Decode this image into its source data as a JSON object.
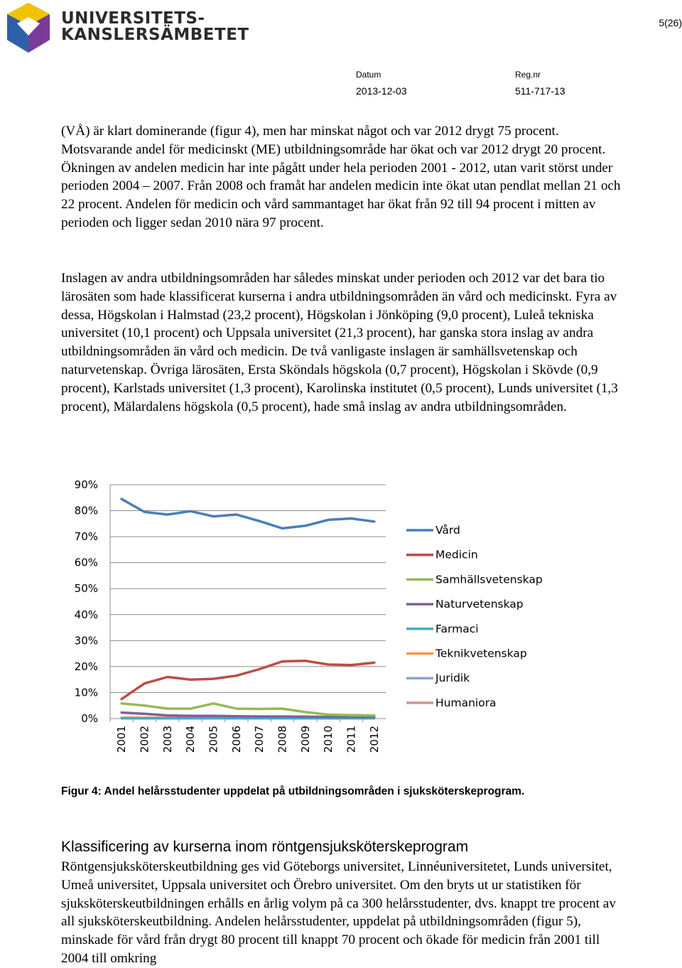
{
  "header": {
    "org_line1": "UNIVERSITETS-",
    "org_line2": "KANSLERSÄMBETET",
    "page_number": "5(26)",
    "date_label": "Datum",
    "date_value": "2013-12-03",
    "regnr_label": "Reg.nr",
    "regnr_value": "511-717-13",
    "logo_icon": "cube-logo-icon",
    "colors": {
      "logo_purple": "#6b2f8f",
      "logo_blue": "#2f5fa8",
      "logo_yellow": "#f2c200",
      "logo_white": "#ffffff"
    }
  },
  "paragraphs": [
    "(VÅ) är klart dominerande (figur 4), men har minskat något och var 2012 drygt 75 procent. Motsvarande andel för medicinskt (ME) utbildningsområde har ökat och var 2012 drygt 20 procent. Ökningen av andelen medicin har inte pågått under hela perioden 2001 - 2012, utan varit störst under perioden 2004 – 2007. Från 2008 och framåt har andelen medicin inte ökat utan pendlat mellan 21 och 22 procent. Andelen för medicin och vård sammantaget har ökat från 92 till 94 procent i mitten av perioden och ligger sedan 2010 nära 97 procent.",
    "Inslagen av andra utbildningsområden har således minskat under perioden och 2012 var det bara tio lärosäten som hade klassificerat kurserna i andra utbildningsområden än vård och medicinskt. Fyra av dessa, Högskolan i Halmstad (23,2 procent), Högskolan i Jönköping (9,0 procent), Luleå tekniska universitet (10,1 procent) och Uppsala universitet (21,3 procent), har ganska stora inslag av andra utbildningsområden än vård och medicin. De två vanligaste inslagen är samhällsvetenskap och naturvetenskap. Övriga lärosäten, Ersta Sköndals högskola (0,7 procent), Högskolan i Skövde (0,9 procent), Karlstads universitet (1,3 procent), Karolinska institutet (0,5 procent), Lunds universitet (1,3 procent), Mälardalens högskola (0,5 procent), hade små inslag av andra utbildningsområden.",
    "Röntgensjuksköterskeutbildning ges vid Göteborgs universitet, Linnéuniversitetet, Lunds universitet, Umeå universitet, Uppsala universitet och Örebro universitet. Om den bryts ut ur statistiken för sjuksköterskeutbildningen erhålls en årlig volym på ca 300 helårsstudenter, dvs. knappt tre procent av all sjuksköterskeutbildning. Andelen helårsstudenter, uppdelat på utbildningsområden (figur 5), minskade för vård från drygt 80 procent till knappt 70 procent och ökade för medicin från 2001 till 2004 till omkring"
  ],
  "figure_caption": "Figur 4: Andel helårsstudenter uppdelat på utbildningsområden i sjuksköterskeprogram.",
  "section_heading": "Klassificering av kurserna inom röntgensjuksköterskeprogram",
  "chart_data": {
    "type": "line",
    "title": "",
    "xlabel": "",
    "ylabel": "",
    "x": [
      "2001",
      "2002",
      "2003",
      "2004",
      "2005",
      "2006",
      "2007",
      "2008",
      "2009",
      "2010",
      "2011",
      "2012"
    ],
    "ylim": [
      0,
      90
    ],
    "yticks": [
      "0%",
      "10%",
      "20%",
      "30%",
      "40%",
      "50%",
      "60%",
      "70%",
      "80%",
      "90%"
    ],
    "grid": "horizontal",
    "legend_position": "right",
    "series": [
      {
        "name": "Vård",
        "color": "#4a7ebb",
        "values": [
          84.5,
          79.5,
          78.5,
          79.8,
          77.8,
          78.5,
          76,
          73.2,
          74.2,
          76.5,
          77,
          75.8
        ]
      },
      {
        "name": "Medicin",
        "color": "#be4b48",
        "values": [
          7.5,
          13.5,
          16,
          15,
          15.3,
          16.5,
          19,
          22,
          22.2,
          20.8,
          20.6,
          21.5
        ]
      },
      {
        "name": "Samhällsvetenskap",
        "color": "#98b954",
        "values": [
          5.8,
          5,
          3.8,
          3.8,
          5.8,
          3.8,
          3.7,
          3.8,
          2.5,
          1.5,
          1.3,
          1.2
        ]
      },
      {
        "name": "Naturvetenskap",
        "color": "#7d60a0",
        "values": [
          2.3,
          1.8,
          1.2,
          1.0,
          1.0,
          0.9,
          0.8,
          0.8,
          0.7,
          0.6,
          0.6,
          0.6
        ]
      },
      {
        "name": "Farmaci",
        "color": "#46aac5",
        "values": [
          0.1,
          0.1,
          0.1,
          0.1,
          0.1,
          0.1,
          0.1,
          0.1,
          0.1,
          0.1,
          0.1,
          0.1
        ]
      },
      {
        "name": "Teknikvetenskap",
        "color": "#f79646",
        "values": [
          0.3,
          0.3,
          0.3,
          0.3,
          0.3,
          0.3,
          0.4,
          0.4,
          0.3,
          0.2,
          0.2,
          0.2
        ]
      },
      {
        "name": "Juridik",
        "color": "#8da5d4",
        "values": [
          0.1,
          0.1,
          0.1,
          0.1,
          0.1,
          0.1,
          0.1,
          0.1,
          0.1,
          0.1,
          0.1,
          0.1
        ]
      },
      {
        "name": "Humaniora",
        "color": "#d19392",
        "values": [
          0.2,
          0.2,
          0.2,
          0.2,
          0.2,
          0.2,
          0.2,
          0.2,
          0.2,
          0.2,
          0.2,
          0.2
        ]
      }
    ]
  }
}
